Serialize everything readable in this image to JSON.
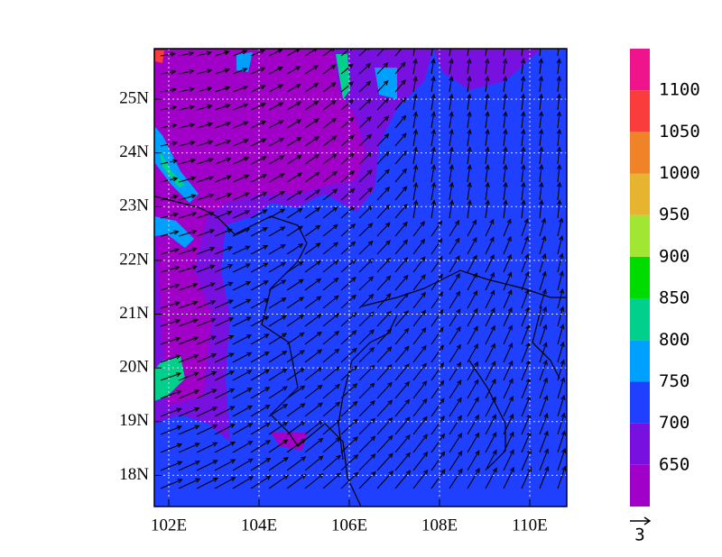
{
  "map": {
    "xlim": [
      101.68,
      110.82
    ],
    "ylim": [
      17.42,
      25.94
    ],
    "xticks": [
      {
        "value": 102,
        "label": "102E"
      },
      {
        "value": 104,
        "label": "104E"
      },
      {
        "value": 106,
        "label": "106E"
      },
      {
        "value": 108,
        "label": "108E"
      },
      {
        "value": 110,
        "label": "110E"
      }
    ],
    "yticks": [
      {
        "value": 18,
        "label": "18N"
      },
      {
        "value": 19,
        "label": "19N"
      },
      {
        "value": 20,
        "label": "20N"
      },
      {
        "value": 21,
        "label": "21N"
      },
      {
        "value": 22,
        "label": "22N"
      },
      {
        "value": 23,
        "label": "23N"
      },
      {
        "value": 24,
        "label": "24N"
      },
      {
        "value": 25,
        "label": "25N"
      }
    ],
    "grid": true,
    "colorbar": {
      "levels": [
        650,
        700,
        750,
        800,
        850,
        900,
        950,
        1000,
        1050,
        1100
      ],
      "colors": [
        "#a000c8",
        "#7810e0",
        "#2040ff",
        "#00a0ff",
        "#00d08c",
        "#00dc00",
        "#a0e632",
        "#e6b42e",
        "#f08228",
        "#fa3c3c",
        "#f0148c"
      ]
    },
    "reference_vector": "3"
  }
}
